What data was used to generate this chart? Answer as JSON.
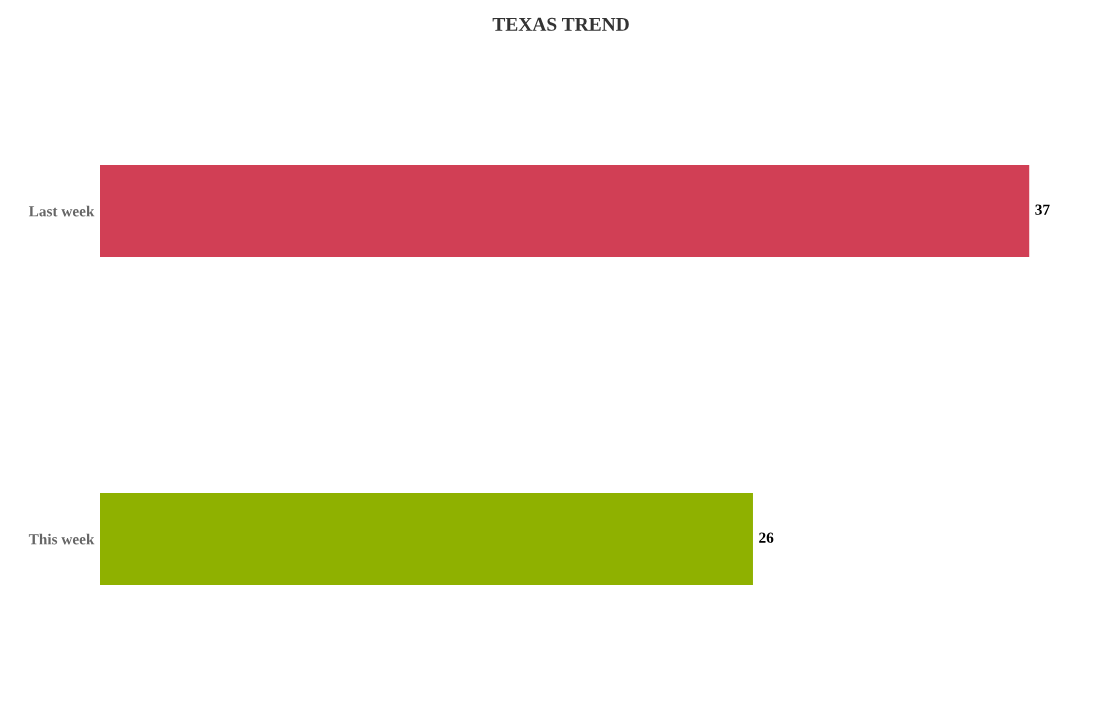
{
  "chart_data": {
    "type": "bar",
    "orientation": "horizontal",
    "title": "TEXAS TREND",
    "categories": [
      "Last week",
      "This week"
    ],
    "values": [
      37,
      26
    ],
    "colors": [
      "#d13f55",
      "#8fb100"
    ],
    "data_labels": true,
    "grid": false,
    "legend": false
  }
}
